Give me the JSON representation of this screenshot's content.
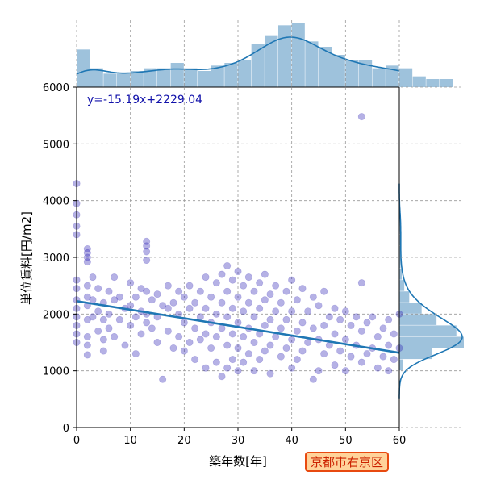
{
  "badge": {
    "text": "京都市右京区",
    "bg": "#ffd39a",
    "border": "#e84a10",
    "color": "#cc2200"
  },
  "chart_data": {
    "type": "scatter",
    "title": "",
    "xlabel": "築年数[年]",
    "ylabel": "単位賃料[円/m2]",
    "xlim": [
      0,
      60
    ],
    "ylim": [
      0,
      6000
    ],
    "xticks": [
      0,
      10,
      20,
      30,
      40,
      50,
      60
    ],
    "yticks": [
      0,
      1000,
      2000,
      3000,
      4000,
      5000,
      6000
    ],
    "grid": true,
    "annotation": "y=-15.19x+2229.04",
    "regression": {
      "slope": -15.19,
      "intercept": 2229.04,
      "x_range": [
        0,
        60
      ]
    },
    "colors": {
      "points": "#2b1fb5",
      "line": "#1f77b4",
      "hist": "#9ec2dc",
      "kde": "#1f77b4",
      "annotation": "#1111aa"
    },
    "marginal_x": {
      "bin_width": 2.5,
      "counts": [
        14,
        7,
        5,
        5,
        6,
        7,
        7,
        9,
        7,
        6,
        8,
        9,
        10,
        16,
        19,
        23,
        24,
        17,
        15,
        12,
        10,
        10,
        7,
        8,
        7,
        4,
        3,
        3
      ]
    },
    "marginal_y": {
      "bin_width": 200,
      "range": [
        1000,
        4000
      ],
      "counts": [
        3,
        26,
        52,
        46,
        30,
        18,
        8,
        4,
        2,
        1,
        1,
        1,
        1,
        1,
        0
      ]
    },
    "points": [
      {
        "x": 0,
        "y": 3950
      },
      {
        "x": 0,
        "y": 3750
      },
      {
        "x": 0,
        "y": 3550
      },
      {
        "x": 0,
        "y": 3400
      },
      {
        "x": 0,
        "y": 2600
      },
      {
        "x": 0,
        "y": 2450
      },
      {
        "x": 0,
        "y": 2250
      },
      {
        "x": 0,
        "y": 2100
      },
      {
        "x": 0,
        "y": 1950
      },
      {
        "x": 0,
        "y": 1800
      },
      {
        "x": 0,
        "y": 1650
      },
      {
        "x": 0,
        "y": 1500
      },
      {
        "x": 0,
        "y": 4300
      },
      {
        "x": 2,
        "y": 3150
      },
      {
        "x": 2,
        "y": 3080
      },
      {
        "x": 2,
        "y": 3000
      },
      {
        "x": 2,
        "y": 2920
      },
      {
        "x": 2,
        "y": 2500
      },
      {
        "x": 2,
        "y": 2300
      },
      {
        "x": 2,
        "y": 2150
      },
      {
        "x": 2,
        "y": 1900
      },
      {
        "x": 2,
        "y": 1600
      },
      {
        "x": 2,
        "y": 1450
      },
      {
        "x": 2,
        "y": 1280
      },
      {
        "x": 3,
        "y": 2650
      },
      {
        "x": 3,
        "y": 2250
      },
      {
        "x": 3,
        "y": 1950
      },
      {
        "x": 4,
        "y": 2450
      },
      {
        "x": 4,
        "y": 2050
      },
      {
        "x": 4,
        "y": 1700
      },
      {
        "x": 5,
        "y": 2200
      },
      {
        "x": 5,
        "y": 1900
      },
      {
        "x": 5,
        "y": 1550
      },
      {
        "x": 5,
        "y": 1350
      },
      {
        "x": 6,
        "y": 2400
      },
      {
        "x": 6,
        "y": 2000
      },
      {
        "x": 6,
        "y": 1750
      },
      {
        "x": 7,
        "y": 2650
      },
      {
        "x": 7,
        "y": 2250
      },
      {
        "x": 7,
        "y": 1600
      },
      {
        "x": 8,
        "y": 2300
      },
      {
        "x": 8,
        "y": 1900
      },
      {
        "x": 9,
        "y": 2100
      },
      {
        "x": 9,
        "y": 1450
      },
      {
        "x": 10,
        "y": 2550
      },
      {
        "x": 10,
        "y": 2150
      },
      {
        "x": 10,
        "y": 1800
      },
      {
        "x": 11,
        "y": 2300
      },
      {
        "x": 11,
        "y": 1950
      },
      {
        "x": 11,
        "y": 1300
      },
      {
        "x": 12,
        "y": 2450
      },
      {
        "x": 12,
        "y": 2050
      },
      {
        "x": 12,
        "y": 1650
      },
      {
        "x": 13,
        "y": 3280
      },
      {
        "x": 13,
        "y": 3200
      },
      {
        "x": 13,
        "y": 3100
      },
      {
        "x": 13,
        "y": 2950
      },
      {
        "x": 13,
        "y": 2400
      },
      {
        "x": 13,
        "y": 2000
      },
      {
        "x": 13,
        "y": 1850
      },
      {
        "x": 14,
        "y": 2250
      },
      {
        "x": 14,
        "y": 1750
      },
      {
        "x": 15,
        "y": 2350
      },
      {
        "x": 15,
        "y": 1950
      },
      {
        "x": 15,
        "y": 1500
      },
      {
        "x": 16,
        "y": 2150
      },
      {
        "x": 16,
        "y": 850
      },
      {
        "x": 17,
        "y": 2500
      },
      {
        "x": 17,
        "y": 2100
      },
      {
        "x": 17,
        "y": 1700
      },
      {
        "x": 18,
        "y": 2200
      },
      {
        "x": 18,
        "y": 1400
      },
      {
        "x": 19,
        "y": 2400
      },
      {
        "x": 19,
        "y": 2000
      },
      {
        "x": 19,
        "y": 1600
      },
      {
        "x": 20,
        "y": 2300
      },
      {
        "x": 20,
        "y": 1850
      },
      {
        "x": 20,
        "y": 1350
      },
      {
        "x": 21,
        "y": 2500
      },
      {
        "x": 21,
        "y": 2100
      },
      {
        "x": 21,
        "y": 1500
      },
      {
        "x": 22,
        "y": 2200
      },
      {
        "x": 22,
        "y": 1750
      },
      {
        "x": 22,
        "y": 1200
      },
      {
        "x": 23,
        "y": 2400
      },
      {
        "x": 23,
        "y": 1950
      },
      {
        "x": 23,
        "y": 1550
      },
      {
        "x": 24,
        "y": 2650
      },
      {
        "x": 24,
        "y": 2100
      },
      {
        "x": 24,
        "y": 1650
      },
      {
        "x": 24,
        "y": 1050
      },
      {
        "x": 25,
        "y": 2300
      },
      {
        "x": 25,
        "y": 1850
      },
      {
        "x": 25,
        "y": 1400
      },
      {
        "x": 26,
        "y": 2550
      },
      {
        "x": 26,
        "y": 2000
      },
      {
        "x": 26,
        "y": 1600
      },
      {
        "x": 26,
        "y": 1150
      },
      {
        "x": 27,
        "y": 2700
      },
      {
        "x": 27,
        "y": 2200
      },
      {
        "x": 27,
        "y": 1750
      },
      {
        "x": 27,
        "y": 900
      },
      {
        "x": 28,
        "y": 2850
      },
      {
        "x": 28,
        "y": 2400
      },
      {
        "x": 28,
        "y": 1950
      },
      {
        "x": 28,
        "y": 1450
      },
      {
        "x": 28,
        "y": 1050
      },
      {
        "x": 29,
        "y": 2600
      },
      {
        "x": 29,
        "y": 2100
      },
      {
        "x": 29,
        "y": 1650
      },
      {
        "x": 29,
        "y": 1200
      },
      {
        "x": 30,
        "y": 2750
      },
      {
        "x": 30,
        "y": 2300
      },
      {
        "x": 30,
        "y": 1850
      },
      {
        "x": 30,
        "y": 1400
      },
      {
        "x": 30,
        "y": 1000
      },
      {
        "x": 31,
        "y": 2500
      },
      {
        "x": 31,
        "y": 2050
      },
      {
        "x": 31,
        "y": 1600
      },
      {
        "x": 31,
        "y": 1150
      },
      {
        "x": 32,
        "y": 2650
      },
      {
        "x": 32,
        "y": 2200
      },
      {
        "x": 32,
        "y": 1750
      },
      {
        "x": 32,
        "y": 1300
      },
      {
        "x": 33,
        "y": 2400
      },
      {
        "x": 33,
        "y": 1950
      },
      {
        "x": 33,
        "y": 1500
      },
      {
        "x": 33,
        "y": 1000
      },
      {
        "x": 34,
        "y": 2550
      },
      {
        "x": 34,
        "y": 2100
      },
      {
        "x": 34,
        "y": 1650
      },
      {
        "x": 34,
        "y": 1200
      },
      {
        "x": 35,
        "y": 2700
      },
      {
        "x": 35,
        "y": 2250
      },
      {
        "x": 35,
        "y": 1800
      },
      {
        "x": 35,
        "y": 1350
      },
      {
        "x": 36,
        "y": 2350
      },
      {
        "x": 36,
        "y": 1900
      },
      {
        "x": 36,
        "y": 1450
      },
      {
        "x": 36,
        "y": 950
      },
      {
        "x": 37,
        "y": 2500
      },
      {
        "x": 37,
        "y": 2050
      },
      {
        "x": 37,
        "y": 1600
      },
      {
        "x": 38,
        "y": 2200
      },
      {
        "x": 38,
        "y": 1750
      },
      {
        "x": 38,
        "y": 1250
      },
      {
        "x": 39,
        "y": 2400
      },
      {
        "x": 39,
        "y": 1900
      },
      {
        "x": 39,
        "y": 1400
      },
      {
        "x": 40,
        "y": 2600
      },
      {
        "x": 40,
        "y": 2050
      },
      {
        "x": 40,
        "y": 1550
      },
      {
        "x": 40,
        "y": 1050
      },
      {
        "x": 41,
        "y": 2250
      },
      {
        "x": 41,
        "y": 1700
      },
      {
        "x": 41,
        "y": 1200
      },
      {
        "x": 42,
        "y": 2450
      },
      {
        "x": 42,
        "y": 1850
      },
      {
        "x": 42,
        "y": 1350
      },
      {
        "x": 43,
        "y": 2050
      },
      {
        "x": 43,
        "y": 1500
      },
      {
        "x": 44,
        "y": 2300
      },
      {
        "x": 44,
        "y": 1750
      },
      {
        "x": 44,
        "y": 850
      },
      {
        "x": 45,
        "y": 2150
      },
      {
        "x": 45,
        "y": 1550
      },
      {
        "x": 45,
        "y": 1000
      },
      {
        "x": 46,
        "y": 2400
      },
      {
        "x": 46,
        "y": 1800
      },
      {
        "x": 46,
        "y": 1300
      },
      {
        "x": 47,
        "y": 1950
      },
      {
        "x": 47,
        "y": 1450
      },
      {
        "x": 48,
        "y": 2100
      },
      {
        "x": 48,
        "y": 1650
      },
      {
        "x": 48,
        "y": 1100
      },
      {
        "x": 49,
        "y": 1900
      },
      {
        "x": 49,
        "y": 1350
      },
      {
        "x": 50,
        "y": 2050
      },
      {
        "x": 50,
        "y": 1550
      },
      {
        "x": 50,
        "y": 1000
      },
      {
        "x": 51,
        "y": 1800
      },
      {
        "x": 51,
        "y": 1250
      },
      {
        "x": 52,
        "y": 1950
      },
      {
        "x": 52,
        "y": 1450
      },
      {
        "x": 53,
        "y": 5480
      },
      {
        "x": 53,
        "y": 2550
      },
      {
        "x": 53,
        "y": 1700
      },
      {
        "x": 53,
        "y": 1150
      },
      {
        "x": 54,
        "y": 1850
      },
      {
        "x": 54,
        "y": 1300
      },
      {
        "x": 55,
        "y": 1950
      },
      {
        "x": 55,
        "y": 1400
      },
      {
        "x": 56,
        "y": 1600
      },
      {
        "x": 56,
        "y": 1050
      },
      {
        "x": 57,
        "y": 1750
      },
      {
        "x": 57,
        "y": 1250
      },
      {
        "x": 58,
        "y": 1900
      },
      {
        "x": 58,
        "y": 1450
      },
      {
        "x": 58,
        "y": 1000
      },
      {
        "x": 59,
        "y": 1650
      },
      {
        "x": 59,
        "y": 1200
      },
      {
        "x": 60,
        "y": 2000
      },
      {
        "x": 60,
        "y": 1400
      }
    ]
  }
}
